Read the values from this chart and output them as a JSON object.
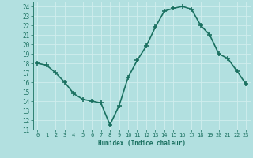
{
  "x": [
    0,
    1,
    2,
    3,
    4,
    5,
    6,
    7,
    8,
    9,
    10,
    11,
    12,
    13,
    14,
    15,
    16,
    17,
    18,
    19,
    20,
    21,
    22,
    23
  ],
  "y": [
    18,
    17.8,
    17,
    16,
    14.8,
    14.2,
    14,
    13.8,
    11.5,
    13.5,
    16.5,
    18.3,
    19.8,
    21.8,
    23.5,
    23.8,
    24,
    23.7,
    22,
    21,
    19,
    18.5,
    17.2,
    15.8
  ],
  "xlabel": "Humidex (Indice chaleur)",
  "line_color": "#1a7060",
  "bg_color": "#b2e0e0",
  "grid_color": "#d0eeee",
  "ylim": [
    11,
    24.5
  ],
  "xlim": [
    -0.5,
    23.5
  ],
  "yticks": [
    11,
    12,
    13,
    14,
    15,
    16,
    17,
    18,
    19,
    20,
    21,
    22,
    23,
    24
  ],
  "xticks": [
    0,
    1,
    2,
    3,
    4,
    5,
    6,
    7,
    8,
    9,
    10,
    11,
    12,
    13,
    14,
    15,
    16,
    17,
    18,
    19,
    20,
    21,
    22,
    23
  ],
  "marker": "+",
  "marker_size": 4,
  "linewidth": 1.2
}
